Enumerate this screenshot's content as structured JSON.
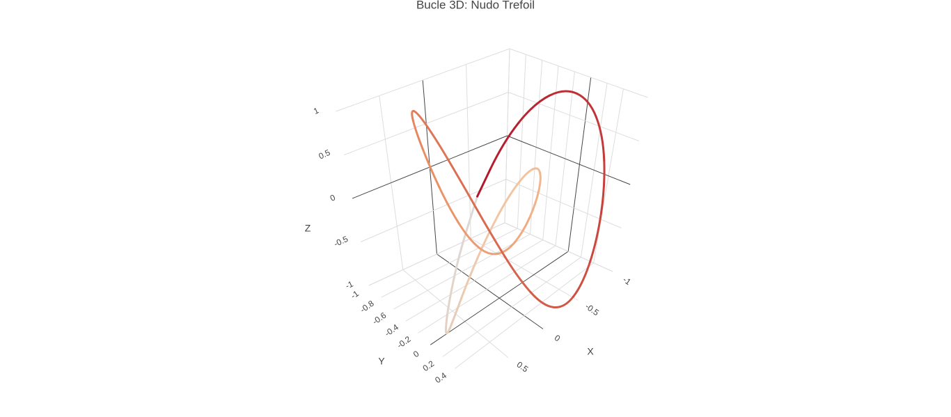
{
  "chart_data": {
    "type": "line3d",
    "title": "Bucle 3D: Nudo Trefoil",
    "x_label": "X",
    "y_label": "Y",
    "z_label": "Z",
    "x": [
      0,
      0.286,
      0.543,
      0.744,
      0.871,
      0.912,
      0.866,
      0.742,
      0.556,
      0.333,
      0.1,
      -0.115,
      -0.289,
      -0.401,
      -0.442,
      -0.411,
      -0.315,
      -0.17,
      0,
      0.17,
      0.315,
      0.411,
      0.442,
      0.401,
      0.289,
      0.115,
      -0.1,
      -0.333,
      -0.556,
      -0.742,
      -0.866,
      -0.912,
      -0.871,
      -0.744,
      -0.543,
      -0.286,
      0
    ],
    "y": [
      -0.333,
      -0.298,
      -0.197,
      -0.045,
      0.14,
      0.33,
      0.5,
      0.625,
      0.684,
      0.667,
      0.568,
      0.397,
      0.167,
      -0.099,
      -0.371,
      -0.622,
      -0.824,
      -0.955,
      -1,
      -0.955,
      -0.824,
      -0.622,
      -0.371,
      -0.099,
      0.167,
      0.397,
      0.568,
      0.667,
      0.684,
      0.625,
      0.5,
      0.33,
      0.14,
      -0.045,
      -0.197,
      -0.298,
      -0.333
    ],
    "z": [
      0,
      -0.5,
      -0.866,
      -1,
      -0.866,
      -0.5,
      0,
      0.5,
      0.866,
      1,
      0.866,
      0.5,
      0,
      -0.5,
      -0.866,
      -1,
      -0.866,
      -0.5,
      0,
      0.5,
      0.866,
      1,
      0.866,
      0.5,
      0,
      -0.5,
      -0.866,
      -1,
      -0.866,
      -0.5,
      0,
      0.5,
      0.866,
      1,
      0.866,
      0.5,
      0
    ],
    "colorscale": [
      "#dcd9d6",
      "#f4c29c",
      "#ea8e63",
      "#d05645",
      "#b2182b"
    ],
    "xlim": [
      -1,
      1
    ],
    "xticks": [
      -1,
      -0.5,
      0,
      0.5
    ],
    "ylim": [
      -1,
      0.7
    ],
    "yticks": [
      -1,
      -0.8,
      -0.6,
      -0.4,
      -0.2,
      0,
      0.2,
      0.4
    ],
    "zlim": [
      -1,
      1
    ],
    "zticks": [
      -1,
      -0.5,
      0,
      0.5,
      1
    ],
    "grid": true
  }
}
